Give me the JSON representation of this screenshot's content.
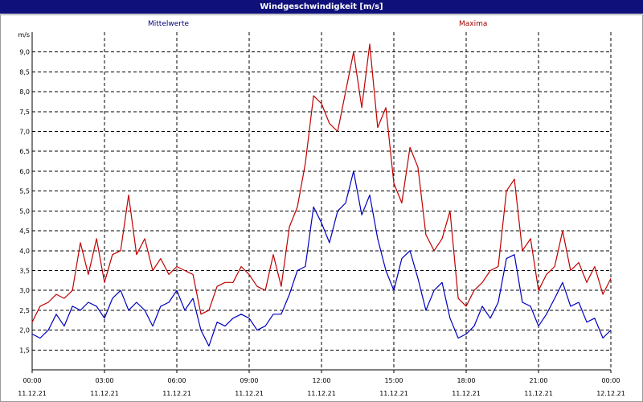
{
  "window": {
    "title": "Windgeschwindigkeit [m/s]"
  },
  "chart_data": {
    "type": "line",
    "title": "Windgeschwindigkeit [m/s]",
    "ylabel": "m/s",
    "xlabel": "",
    "ylim": [
      1.0,
      9.5
    ],
    "y_ticks": [
      "1,5",
      "2,0",
      "2,5",
      "3,0",
      "3,5",
      "4,0",
      "4,5",
      "5,0",
      "5,5",
      "6,0",
      "6,5",
      "7,0",
      "7,5",
      "8,0",
      "8,5",
      "9,0"
    ],
    "y_tick_values": [
      1.5,
      2.0,
      2.5,
      3.0,
      3.5,
      4.0,
      4.5,
      5.0,
      5.5,
      6.0,
      6.5,
      7.0,
      7.5,
      8.0,
      8.5,
      9.0
    ],
    "x_range_hours": [
      0,
      24
    ],
    "x_ticks": [
      {
        "time": "00:00",
        "date": "11.12.21",
        "hour": 0
      },
      {
        "time": "03:00",
        "date": "11.12.21",
        "hour": 3
      },
      {
        "time": "06:00",
        "date": "11.12.21",
        "hour": 6
      },
      {
        "time": "09:00",
        "date": "11.12.21",
        "hour": 9
      },
      {
        "time": "12:00",
        "date": "11.12.21",
        "hour": 12
      },
      {
        "time": "15:00",
        "date": "11.12.21",
        "hour": 15
      },
      {
        "time": "18:00",
        "date": "11.12.21",
        "hour": 18
      },
      {
        "time": "21:00",
        "date": "11.12.21",
        "hour": 21
      },
      {
        "time": "00:00",
        "date": "12.12.21",
        "hour": 24
      }
    ],
    "grid": true,
    "series": [
      {
        "name": "Mittelwerte",
        "color": "#0000c0",
        "x": [
          0,
          0.33,
          0.67,
          1,
          1.33,
          1.67,
          2,
          2.33,
          2.67,
          3,
          3.33,
          3.67,
          4,
          4.33,
          4.67,
          5,
          5.33,
          5.67,
          6,
          6.33,
          6.67,
          7,
          7.33,
          7.67,
          8,
          8.33,
          8.67,
          9,
          9.33,
          9.67,
          10,
          10.33,
          10.67,
          11,
          11.33,
          11.67,
          12,
          12.33,
          12.67,
          13,
          13.33,
          13.67,
          14,
          14.33,
          14.67,
          15,
          15.33,
          15.67,
          16,
          16.33,
          16.67,
          17,
          17.33,
          17.67,
          18,
          18.33,
          18.67,
          19,
          19.33,
          19.67,
          20,
          20.33,
          20.67,
          21,
          21.33,
          21.67,
          22,
          22.33,
          22.67,
          23,
          23.33,
          23.67,
          24
        ],
        "values": [
          1.9,
          1.8,
          2.0,
          2.4,
          2.1,
          2.6,
          2.5,
          2.7,
          2.6,
          2.3,
          2.8,
          3.0,
          2.5,
          2.7,
          2.5,
          2.1,
          2.6,
          2.7,
          3.0,
          2.5,
          2.8,
          2.0,
          1.6,
          2.2,
          2.1,
          2.3,
          2.4,
          2.3,
          2.0,
          2.1,
          2.4,
          2.4,
          2.9,
          3.5,
          3.6,
          5.1,
          4.7,
          4.2,
          5.0,
          5.2,
          6.0,
          4.9,
          5.4,
          4.3,
          3.5,
          3.0,
          3.8,
          4.0,
          3.3,
          2.5,
          3.0,
          3.2,
          2.3,
          1.8,
          1.9,
          2.1,
          2.6,
          2.3,
          2.7,
          3.8,
          3.9,
          2.7,
          2.6,
          2.1,
          2.4,
          2.8,
          3.2,
          2.6,
          2.7,
          2.2,
          2.3,
          1.8,
          2.0
        ]
      },
      {
        "name": "Maxima",
        "color": "#c00000",
        "x": [
          0,
          0.33,
          0.67,
          1,
          1.33,
          1.67,
          2,
          2.33,
          2.67,
          3,
          3.33,
          3.67,
          4,
          4.33,
          4.67,
          5,
          5.33,
          5.67,
          6,
          6.33,
          6.67,
          7,
          7.33,
          7.67,
          8,
          8.33,
          8.67,
          9,
          9.33,
          9.67,
          10,
          10.33,
          10.67,
          11,
          11.33,
          11.67,
          12,
          12.33,
          12.67,
          13,
          13.33,
          13.67,
          14,
          14.33,
          14.67,
          15,
          15.33,
          15.67,
          16,
          16.33,
          16.67,
          17,
          17.33,
          17.67,
          18,
          18.33,
          18.67,
          19,
          19.33,
          19.67,
          20,
          20.33,
          20.67,
          21,
          21.33,
          21.67,
          22,
          22.33,
          22.67,
          23,
          23.33,
          23.67,
          24
        ],
        "values": [
          2.2,
          2.6,
          2.7,
          2.9,
          2.8,
          3.0,
          4.2,
          3.4,
          4.3,
          3.2,
          3.9,
          4.0,
          5.4,
          3.9,
          4.3,
          3.5,
          3.8,
          3.4,
          3.6,
          3.5,
          3.4,
          2.4,
          2.5,
          3.1,
          3.2,
          3.2,
          3.6,
          3.4,
          3.1,
          3.0,
          3.9,
          3.1,
          4.6,
          5.1,
          6.2,
          7.9,
          7.7,
          7.2,
          7.0,
          8.0,
          9.0,
          7.6,
          9.2,
          7.1,
          7.6,
          5.7,
          5.2,
          6.6,
          6.1,
          4.4,
          4.0,
          4.3,
          5.0,
          2.8,
          2.6,
          3.0,
          3.2,
          3.5,
          3.6,
          5.5,
          5.8,
          4.0,
          4.3,
          3.0,
          3.4,
          3.6,
          4.5,
          3.5,
          3.7,
          3.2,
          3.6,
          2.9,
          3.3
        ]
      }
    ]
  }
}
